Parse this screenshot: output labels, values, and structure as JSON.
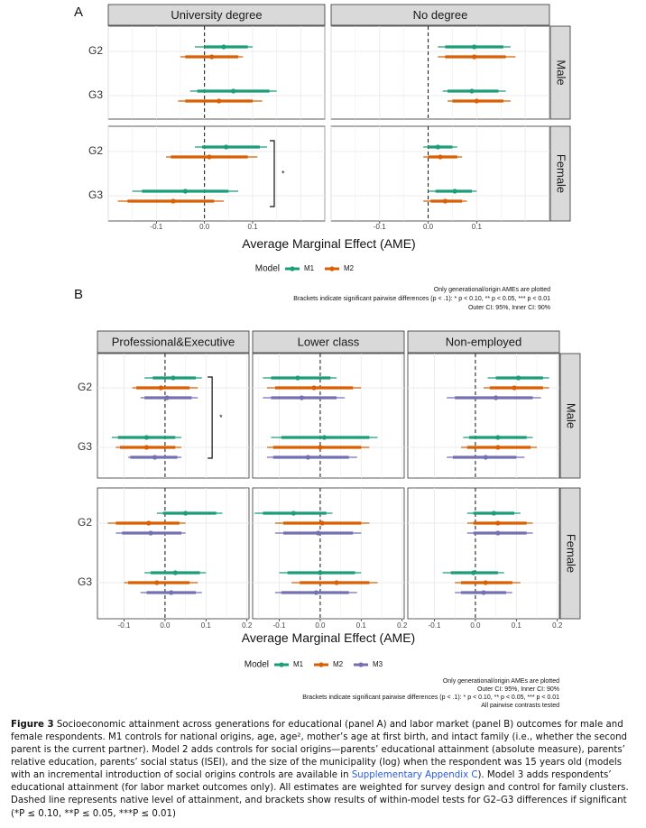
{
  "chart_data": [
    {
      "type": "forest",
      "panel_label": "A",
      "columns": [
        "University degree",
        "No degree"
      ],
      "rows": [
        "Male",
        "Female"
      ],
      "categories": [
        "G2",
        "G3"
      ],
      "xlabel": "Average Marginal Effect (AME)",
      "xticks": [
        -0.1,
        0.0,
        0.1
      ],
      "xtick_labels": [
        "-0.1",
        "0.0",
        "0.1"
      ],
      "xlim": [
        -0.2,
        0.25
      ],
      "reference_line": 0,
      "legend_title": "Model",
      "series": [
        {
          "name": "M1",
          "color": "#1b9e77"
        },
        {
          "name": "M2",
          "color": "#d95f02"
        }
      ],
      "estimates": [
        {
          "col": 0,
          "row": 0,
          "cat": "G2",
          "model": "M1",
          "est": 0.04,
          "outer": [
            -0.02,
            0.1
          ],
          "inner": [
            0.0,
            0.09
          ]
        },
        {
          "col": 0,
          "row": 0,
          "cat": "G2",
          "model": "M2",
          "est": 0.015,
          "outer": [
            -0.05,
            0.08
          ],
          "inner": [
            -0.04,
            0.07
          ]
        },
        {
          "col": 0,
          "row": 0,
          "cat": "G3",
          "model": "M1",
          "est": 0.06,
          "outer": [
            -0.03,
            0.15
          ],
          "inner": [
            -0.015,
            0.135
          ]
        },
        {
          "col": 0,
          "row": 0,
          "cat": "G3",
          "model": "M2",
          "est": 0.03,
          "outer": [
            -0.055,
            0.12
          ],
          "inner": [
            -0.04,
            0.1
          ]
        },
        {
          "col": 1,
          "row": 0,
          "cat": "G2",
          "model": "M1",
          "est": 0.095,
          "outer": [
            0.02,
            0.17
          ],
          "inner": [
            0.035,
            0.155
          ]
        },
        {
          "col": 1,
          "row": 0,
          "cat": "G2",
          "model": "M2",
          "est": 0.095,
          "outer": [
            0.02,
            0.18
          ],
          "inner": [
            0.035,
            0.16
          ]
        },
        {
          "col": 1,
          "row": 0,
          "cat": "G3",
          "model": "M1",
          "est": 0.09,
          "outer": [
            0.03,
            0.16
          ],
          "inner": [
            0.04,
            0.145
          ]
        },
        {
          "col": 1,
          "row": 0,
          "cat": "G3",
          "model": "M2",
          "est": 0.1,
          "outer": [
            0.04,
            0.17
          ],
          "inner": [
            0.05,
            0.155
          ]
        },
        {
          "col": 0,
          "row": 1,
          "cat": "G2",
          "model": "M1",
          "est": 0.045,
          "outer": [
            -0.02,
            0.13
          ],
          "inner": [
            -0.005,
            0.115
          ]
        },
        {
          "col": 0,
          "row": 1,
          "cat": "G2",
          "model": "M2",
          "est": 0.01,
          "outer": [
            -0.08,
            0.11
          ],
          "inner": [
            -0.07,
            0.09
          ]
        },
        {
          "col": 0,
          "row": 1,
          "cat": "G3",
          "model": "M1",
          "est": -0.04,
          "outer": [
            -0.15,
            0.07
          ],
          "inner": [
            -0.13,
            0.05
          ]
        },
        {
          "col": 0,
          "row": 1,
          "cat": "G3",
          "model": "M2",
          "est": -0.065,
          "outer": [
            -0.18,
            0.04
          ],
          "inner": [
            -0.16,
            0.02
          ]
        },
        {
          "col": 1,
          "row": 1,
          "cat": "G2",
          "model": "M1",
          "est": 0.02,
          "outer": [
            -0.01,
            0.06
          ],
          "inner": [
            0.0,
            0.05
          ]
        },
        {
          "col": 1,
          "row": 1,
          "cat": "G2",
          "model": "M2",
          "est": 0.025,
          "outer": [
            -0.01,
            0.07
          ],
          "inner": [
            0.0,
            0.06
          ]
        },
        {
          "col": 1,
          "row": 1,
          "cat": "G3",
          "model": "M1",
          "est": 0.055,
          "outer": [
            0.0,
            0.1
          ],
          "inner": [
            0.015,
            0.09
          ]
        },
        {
          "col": 1,
          "row": 1,
          "cat": "G3",
          "model": "M2",
          "est": 0.035,
          "outer": [
            -0.01,
            0.08
          ],
          "inner": [
            0.005,
            0.07
          ]
        }
      ],
      "brackets": [
        {
          "col": 0,
          "row": 1,
          "label": "*"
        }
      ],
      "notes": [
        "Only generational/origin AMEs are plotted",
        "Brackets indicate significant pairwise differences (p < .1): * p < 0.10, ** p < 0.05, *** p < 0.01",
        "Outer CI: 95%, Inner CI: 90%"
      ]
    },
    {
      "type": "forest",
      "panel_label": "B",
      "columns": [
        "Professional&Executive",
        "Lower class",
        "Non-employed"
      ],
      "rows": [
        "Male",
        "Female"
      ],
      "categories": [
        "G2",
        "G3"
      ],
      "xlabel": "Average Marginal Effect (AME)",
      "xticks": [
        -0.1,
        0.0,
        0.1,
        0.2
      ],
      "xtick_labels": [
        "-0.1",
        "0.0",
        "0.1",
        "0.2"
      ],
      "xlim": [
        -0.165,
        0.205
      ],
      "reference_line": 0,
      "legend_title": "Model",
      "series": [
        {
          "name": "M1",
          "color": "#1b9e77"
        },
        {
          "name": "M2",
          "color": "#d95f02"
        },
        {
          "name": "M3",
          "color": "#7570b3"
        }
      ],
      "estimates": [
        {
          "col": 0,
          "row": 0,
          "cat": "G2",
          "model": "M1",
          "est": 0.02,
          "outer": [
            -0.05,
            0.09
          ],
          "inner": [
            -0.03,
            0.075
          ]
        },
        {
          "col": 0,
          "row": 0,
          "cat": "G2",
          "model": "M2",
          "est": -0.01,
          "outer": [
            -0.08,
            0.08
          ],
          "inner": [
            -0.07,
            0.06
          ]
        },
        {
          "col": 0,
          "row": 0,
          "cat": "G2",
          "model": "M3",
          "est": 0.005,
          "outer": [
            -0.06,
            0.08
          ],
          "inner": [
            -0.05,
            0.065
          ]
        },
        {
          "col": 0,
          "row": 0,
          "cat": "G3",
          "model": "M1",
          "est": -0.045,
          "outer": [
            -0.13,
            0.04
          ],
          "inner": [
            -0.115,
            0.025
          ]
        },
        {
          "col": 0,
          "row": 0,
          "cat": "G3",
          "model": "M2",
          "est": -0.045,
          "outer": [
            -0.12,
            0.04
          ],
          "inner": [
            -0.11,
            0.025
          ]
        },
        {
          "col": 0,
          "row": 0,
          "cat": "G3",
          "model": "M3",
          "est": -0.025,
          "outer": [
            -0.09,
            0.04
          ],
          "inner": [
            -0.085,
            0.03
          ]
        },
        {
          "col": 1,
          "row": 0,
          "cat": "G2",
          "model": "M1",
          "est": -0.055,
          "outer": [
            -0.14,
            0.04
          ],
          "inner": [
            -0.12,
            0.025
          ]
        },
        {
          "col": 1,
          "row": 0,
          "cat": "G2",
          "model": "M2",
          "est": -0.015,
          "outer": [
            -0.13,
            0.1
          ],
          "inner": [
            -0.11,
            0.08
          ]
        },
        {
          "col": 1,
          "row": 0,
          "cat": "G2",
          "model": "M3",
          "est": -0.045,
          "outer": [
            -0.14,
            0.06
          ],
          "inner": [
            -0.12,
            0.04
          ]
        },
        {
          "col": 1,
          "row": 0,
          "cat": "G3",
          "model": "M1",
          "est": 0.01,
          "outer": [
            -0.12,
            0.14
          ],
          "inner": [
            -0.095,
            0.12
          ]
        },
        {
          "col": 1,
          "row": 0,
          "cat": "G3",
          "model": "M2",
          "est": 0.0,
          "outer": [
            -0.13,
            0.12
          ],
          "inner": [
            -0.115,
            0.1
          ]
        },
        {
          "col": 1,
          "row": 0,
          "cat": "G3",
          "model": "M3",
          "est": -0.03,
          "outer": [
            -0.13,
            0.09
          ],
          "inner": [
            -0.115,
            0.07
          ]
        },
        {
          "col": 2,
          "row": 0,
          "cat": "G2",
          "model": "M1",
          "est": 0.105,
          "outer": [
            0.03,
            0.18
          ],
          "inner": [
            0.05,
            0.165
          ]
        },
        {
          "col": 2,
          "row": 0,
          "cat": "G2",
          "model": "M2",
          "est": 0.095,
          "outer": [
            0.02,
            0.18
          ],
          "inner": [
            0.035,
            0.165
          ]
        },
        {
          "col": 2,
          "row": 0,
          "cat": "G2",
          "model": "M3",
          "est": 0.05,
          "outer": [
            -0.07,
            0.16
          ],
          "inner": [
            -0.05,
            0.14
          ]
        },
        {
          "col": 2,
          "row": 0,
          "cat": "G3",
          "model": "M1",
          "est": 0.055,
          "outer": [
            -0.03,
            0.14
          ],
          "inner": [
            -0.015,
            0.125
          ]
        },
        {
          "col": 2,
          "row": 0,
          "cat": "G3",
          "model": "M2",
          "est": 0.055,
          "outer": [
            -0.035,
            0.15
          ],
          "inner": [
            -0.02,
            0.135
          ]
        },
        {
          "col": 2,
          "row": 0,
          "cat": "G3",
          "model": "M3",
          "est": 0.025,
          "outer": [
            -0.07,
            0.12
          ],
          "inner": [
            -0.055,
            0.1
          ]
        },
        {
          "col": 0,
          "row": 1,
          "cat": "G2",
          "model": "M1",
          "est": 0.05,
          "outer": [
            -0.02,
            0.14
          ],
          "inner": [
            -0.005,
            0.125
          ]
        },
        {
          "col": 0,
          "row": 1,
          "cat": "G2",
          "model": "M2",
          "est": -0.04,
          "outer": [
            -0.14,
            0.05
          ],
          "inner": [
            -0.12,
            0.035
          ]
        },
        {
          "col": 0,
          "row": 1,
          "cat": "G2",
          "model": "M3",
          "est": -0.035,
          "outer": [
            -0.12,
            0.05
          ],
          "inner": [
            -0.105,
            0.04
          ]
        },
        {
          "col": 0,
          "row": 1,
          "cat": "G3",
          "model": "M1",
          "est": 0.025,
          "outer": [
            -0.05,
            0.1
          ],
          "inner": [
            -0.035,
            0.085
          ]
        },
        {
          "col": 0,
          "row": 1,
          "cat": "G3",
          "model": "M2",
          "est": -0.02,
          "outer": [
            -0.1,
            0.08
          ],
          "inner": [
            -0.09,
            0.06
          ]
        },
        {
          "col": 0,
          "row": 1,
          "cat": "G3",
          "model": "M3",
          "est": 0.015,
          "outer": [
            -0.06,
            0.09
          ],
          "inner": [
            -0.045,
            0.075
          ]
        },
        {
          "col": 1,
          "row": 1,
          "cat": "G2",
          "model": "M1",
          "est": -0.065,
          "outer": [
            -0.16,
            0.03
          ],
          "inner": [
            -0.14,
            0.015
          ]
        },
        {
          "col": 1,
          "row": 1,
          "cat": "G2",
          "model": "M2",
          "est": 0.005,
          "outer": [
            -0.11,
            0.12
          ],
          "inner": [
            -0.09,
            0.1
          ]
        },
        {
          "col": 1,
          "row": 1,
          "cat": "G2",
          "model": "M3",
          "est": -0.005,
          "outer": [
            -0.11,
            0.1
          ],
          "inner": [
            -0.09,
            0.08
          ]
        },
        {
          "col": 1,
          "row": 1,
          "cat": "G3",
          "model": "M1",
          "est": 0.0,
          "outer": [
            -0.1,
            0.1
          ],
          "inner": [
            -0.08,
            0.085
          ]
        },
        {
          "col": 1,
          "row": 1,
          "cat": "G3",
          "model": "M2",
          "est": 0.04,
          "outer": [
            -0.07,
            0.14
          ],
          "inner": [
            -0.05,
            0.12
          ]
        },
        {
          "col": 1,
          "row": 1,
          "cat": "G3",
          "model": "M3",
          "est": -0.01,
          "outer": [
            -0.11,
            0.09
          ],
          "inner": [
            -0.095,
            0.07
          ]
        },
        {
          "col": 2,
          "row": 1,
          "cat": "G2",
          "model": "M1",
          "est": 0.045,
          "outer": [
            -0.02,
            0.11
          ],
          "inner": [
            -0.005,
            0.095
          ]
        },
        {
          "col": 2,
          "row": 1,
          "cat": "G2",
          "model": "M2",
          "est": 0.055,
          "outer": [
            -0.02,
            0.14
          ],
          "inner": [
            -0.005,
            0.125
          ]
        },
        {
          "col": 2,
          "row": 1,
          "cat": "G2",
          "model": "M3",
          "est": 0.055,
          "outer": [
            -0.02,
            0.14
          ],
          "inner": [
            -0.005,
            0.125
          ]
        },
        {
          "col": 2,
          "row": 1,
          "cat": "G3",
          "model": "M1",
          "est": -0.005,
          "outer": [
            -0.08,
            0.07
          ],
          "inner": [
            -0.06,
            0.055
          ]
        },
        {
          "col": 2,
          "row": 1,
          "cat": "G3",
          "model": "M2",
          "est": 0.025,
          "outer": [
            -0.05,
            0.11
          ],
          "inner": [
            -0.035,
            0.09
          ]
        },
        {
          "col": 2,
          "row": 1,
          "cat": "G3",
          "model": "M3",
          "est": 0.02,
          "outer": [
            -0.05,
            0.09
          ],
          "inner": [
            -0.035,
            0.075
          ]
        }
      ],
      "brackets": [
        {
          "col": 0,
          "row": 0,
          "label": "*"
        }
      ],
      "notes": [
        "Only generational/origin AMEs are plotted",
        "Outer CI: 95%, Inner CI: 90%",
        "Brackets indicate significant pairwise differences (p < .1): * p < 0.10, ** p < 0.05, *** p < 0.01",
        "All pairwise contrasts tested"
      ]
    }
  ],
  "caption": {
    "label": "Figure 3",
    "part1": " Socioeconomic attainment across generations for educational (panel A) and labor market (panel B) outcomes for male and female respondents. M1 controls for national origins, age, age², mother’s age at first birth, and intact family (i.e., whether the second parent is the current partner). Model 2 adds controls for social origins—parents’ educational attainment (absolute measure), parents’ relative education, parents’ social status (ISEI), and the size of the municipality (log) when the respondent was 15 years old (models with an incremental introduction of social origins controls are available in ",
    "link": "Supplementary Appendix C",
    "part2": "). Model 3 adds respondents’ educational attainment (for labor market outcomes only). All estimates are weighted for survey design and control for family clusters. Dashed line represents native level of attainment, and brackets show results of within-model tests for G2–G3 differences if significant (*P ≤ 0.10, **P ≤ 0.05, ***P ≤ 0.01)"
  }
}
